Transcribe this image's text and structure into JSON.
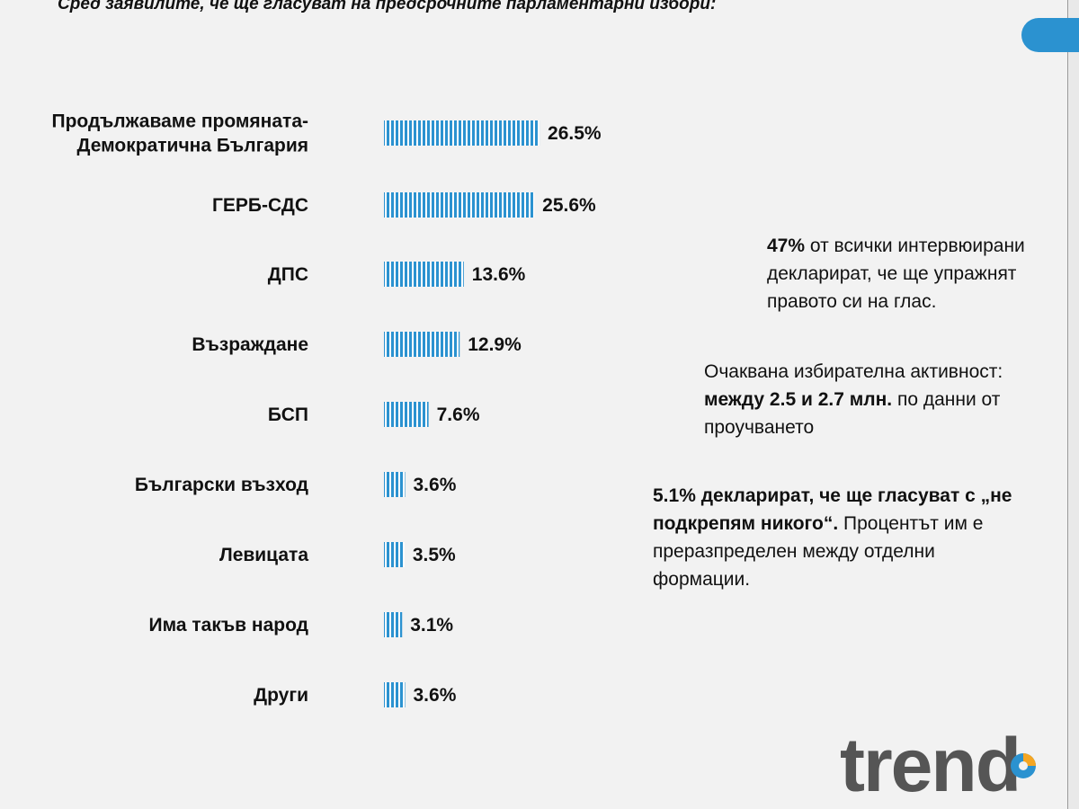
{
  "header": {
    "title": "Сред заявилите, че ще гласуват на  предсрочните парламентарни избори:"
  },
  "chart_data": {
    "type": "bar",
    "orientation": "horizontal",
    "categories": [
      "Продължаваме промяната-\nДемократична България",
      "ГЕРБ-СДС",
      "ДПС",
      "Възраждане",
      "БСП",
      "Български възход",
      "Левицата",
      "Има такъв народ",
      "Други"
    ],
    "values": [
      26.5,
      25.6,
      13.6,
      12.9,
      7.6,
      3.6,
      3.5,
      3.1,
      3.6
    ],
    "value_labels": [
      "26.5%",
      "25.6%",
      "13.6%",
      "12.9%",
      "7.6%",
      "3.6%",
      "3.5%",
      "3.1%",
      "3.6%"
    ],
    "unit": "%",
    "bar_color": "#2b92d0",
    "bar_pattern": "vertical-stripes"
  },
  "notes": [
    {
      "bold": "47%",
      "text": " от всички интервюирани декларират, че ще упражнят правото си на глас."
    },
    {
      "lead": "Очаквана избирателна активност: ",
      "bold": "между 2.5 и 2.7 млн.",
      "text": " по данни от проучването"
    },
    {
      "bold": "5.1% декларират, че ще гласуват с „не подкрепям никого“.",
      "text": " Процентът им е преразпределен между отделни формации."
    }
  ],
  "logo": {
    "text": "trend",
    "colors": {
      "text": "#555555",
      "accent_blue": "#2b92d0",
      "accent_orange": "#f5a623"
    }
  }
}
